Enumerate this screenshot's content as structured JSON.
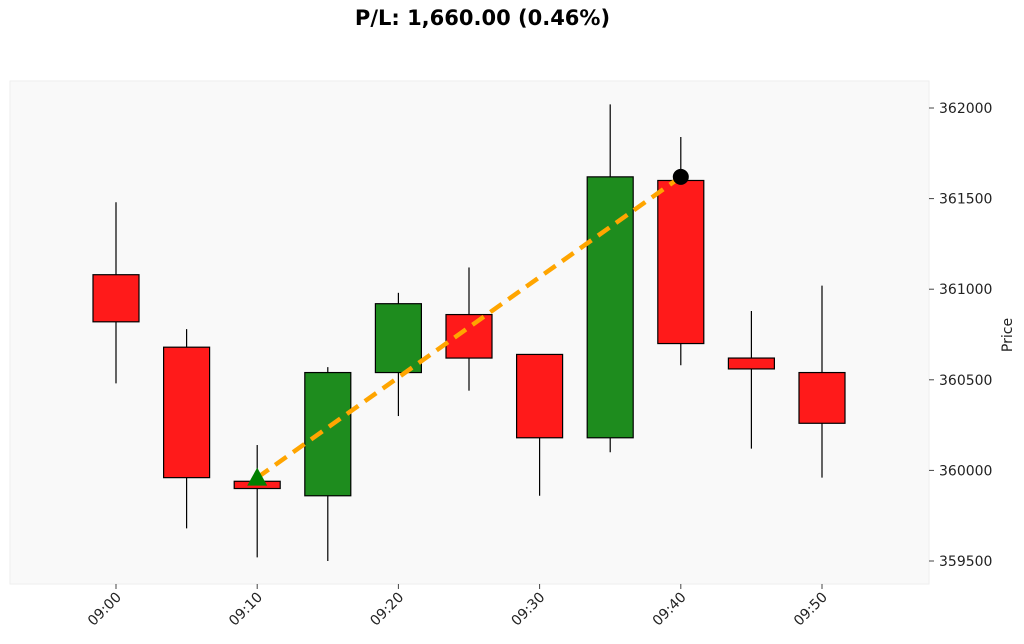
{
  "title": "P/L: 1,660.00 (0.46%)",
  "colors": {
    "up": "#1e8c1e",
    "down": "#ff1a1a",
    "trade_line": "#ffa500",
    "entry_marker": "#008000",
    "exit_marker": "#000000",
    "plot_bg": "#f9f9f9",
    "edge": "#000000"
  },
  "chart_data": {
    "type": "candlestick",
    "title": "P/L: 1,660.00 (0.46%)",
    "xlabel": "",
    "ylabel": "Price",
    "ylim": [
      359350,
      362150
    ],
    "y_ticks": [
      359500,
      360000,
      360500,
      361000,
      361500,
      362000
    ],
    "x_ticks": [
      "09:00",
      "09:10",
      "09:20",
      "09:30",
      "09:40",
      "09:50"
    ],
    "grid": false,
    "y_axis_position": "right",
    "candles": [
      {
        "time": "09:00",
        "open": 361080,
        "high": 361480,
        "low": 360480,
        "close": 360820
      },
      {
        "time": "09:05",
        "open": 360680,
        "high": 360780,
        "low": 359680,
        "close": 359960
      },
      {
        "time": "09:10",
        "open": 359940,
        "high": 360140,
        "low": 359520,
        "close": 359900
      },
      {
        "time": "09:15",
        "open": 359860,
        "high": 360570,
        "low": 359500,
        "close": 360540
      },
      {
        "time": "09:20",
        "open": 360540,
        "high": 360980,
        "low": 360300,
        "close": 360920
      },
      {
        "time": "09:25",
        "open": 360860,
        "high": 361120,
        "low": 360440,
        "close": 360620
      },
      {
        "time": "09:30",
        "open": 360640,
        "high": 360640,
        "low": 359860,
        "close": 360180
      },
      {
        "time": "09:35",
        "open": 360180,
        "high": 362020,
        "low": 360100,
        "close": 361620
      },
      {
        "time": "09:40",
        "open": 361600,
        "high": 361840,
        "low": 360580,
        "close": 360700
      },
      {
        "time": "09:45",
        "open": 360620,
        "high": 360880,
        "low": 360120,
        "close": 360560
      },
      {
        "time": "09:50",
        "open": 360540,
        "high": 361020,
        "low": 359960,
        "close": 360260
      }
    ],
    "trade": {
      "entry": {
        "time": "09:10",
        "price": 359960,
        "marker": "triangle-up",
        "color": "#008000"
      },
      "exit": {
        "time": "09:40",
        "price": 361620,
        "marker": "circle",
        "color": "#000000"
      },
      "line_style": "dashed",
      "pnl": 1660.0,
      "pnl_pct": 0.46
    }
  }
}
